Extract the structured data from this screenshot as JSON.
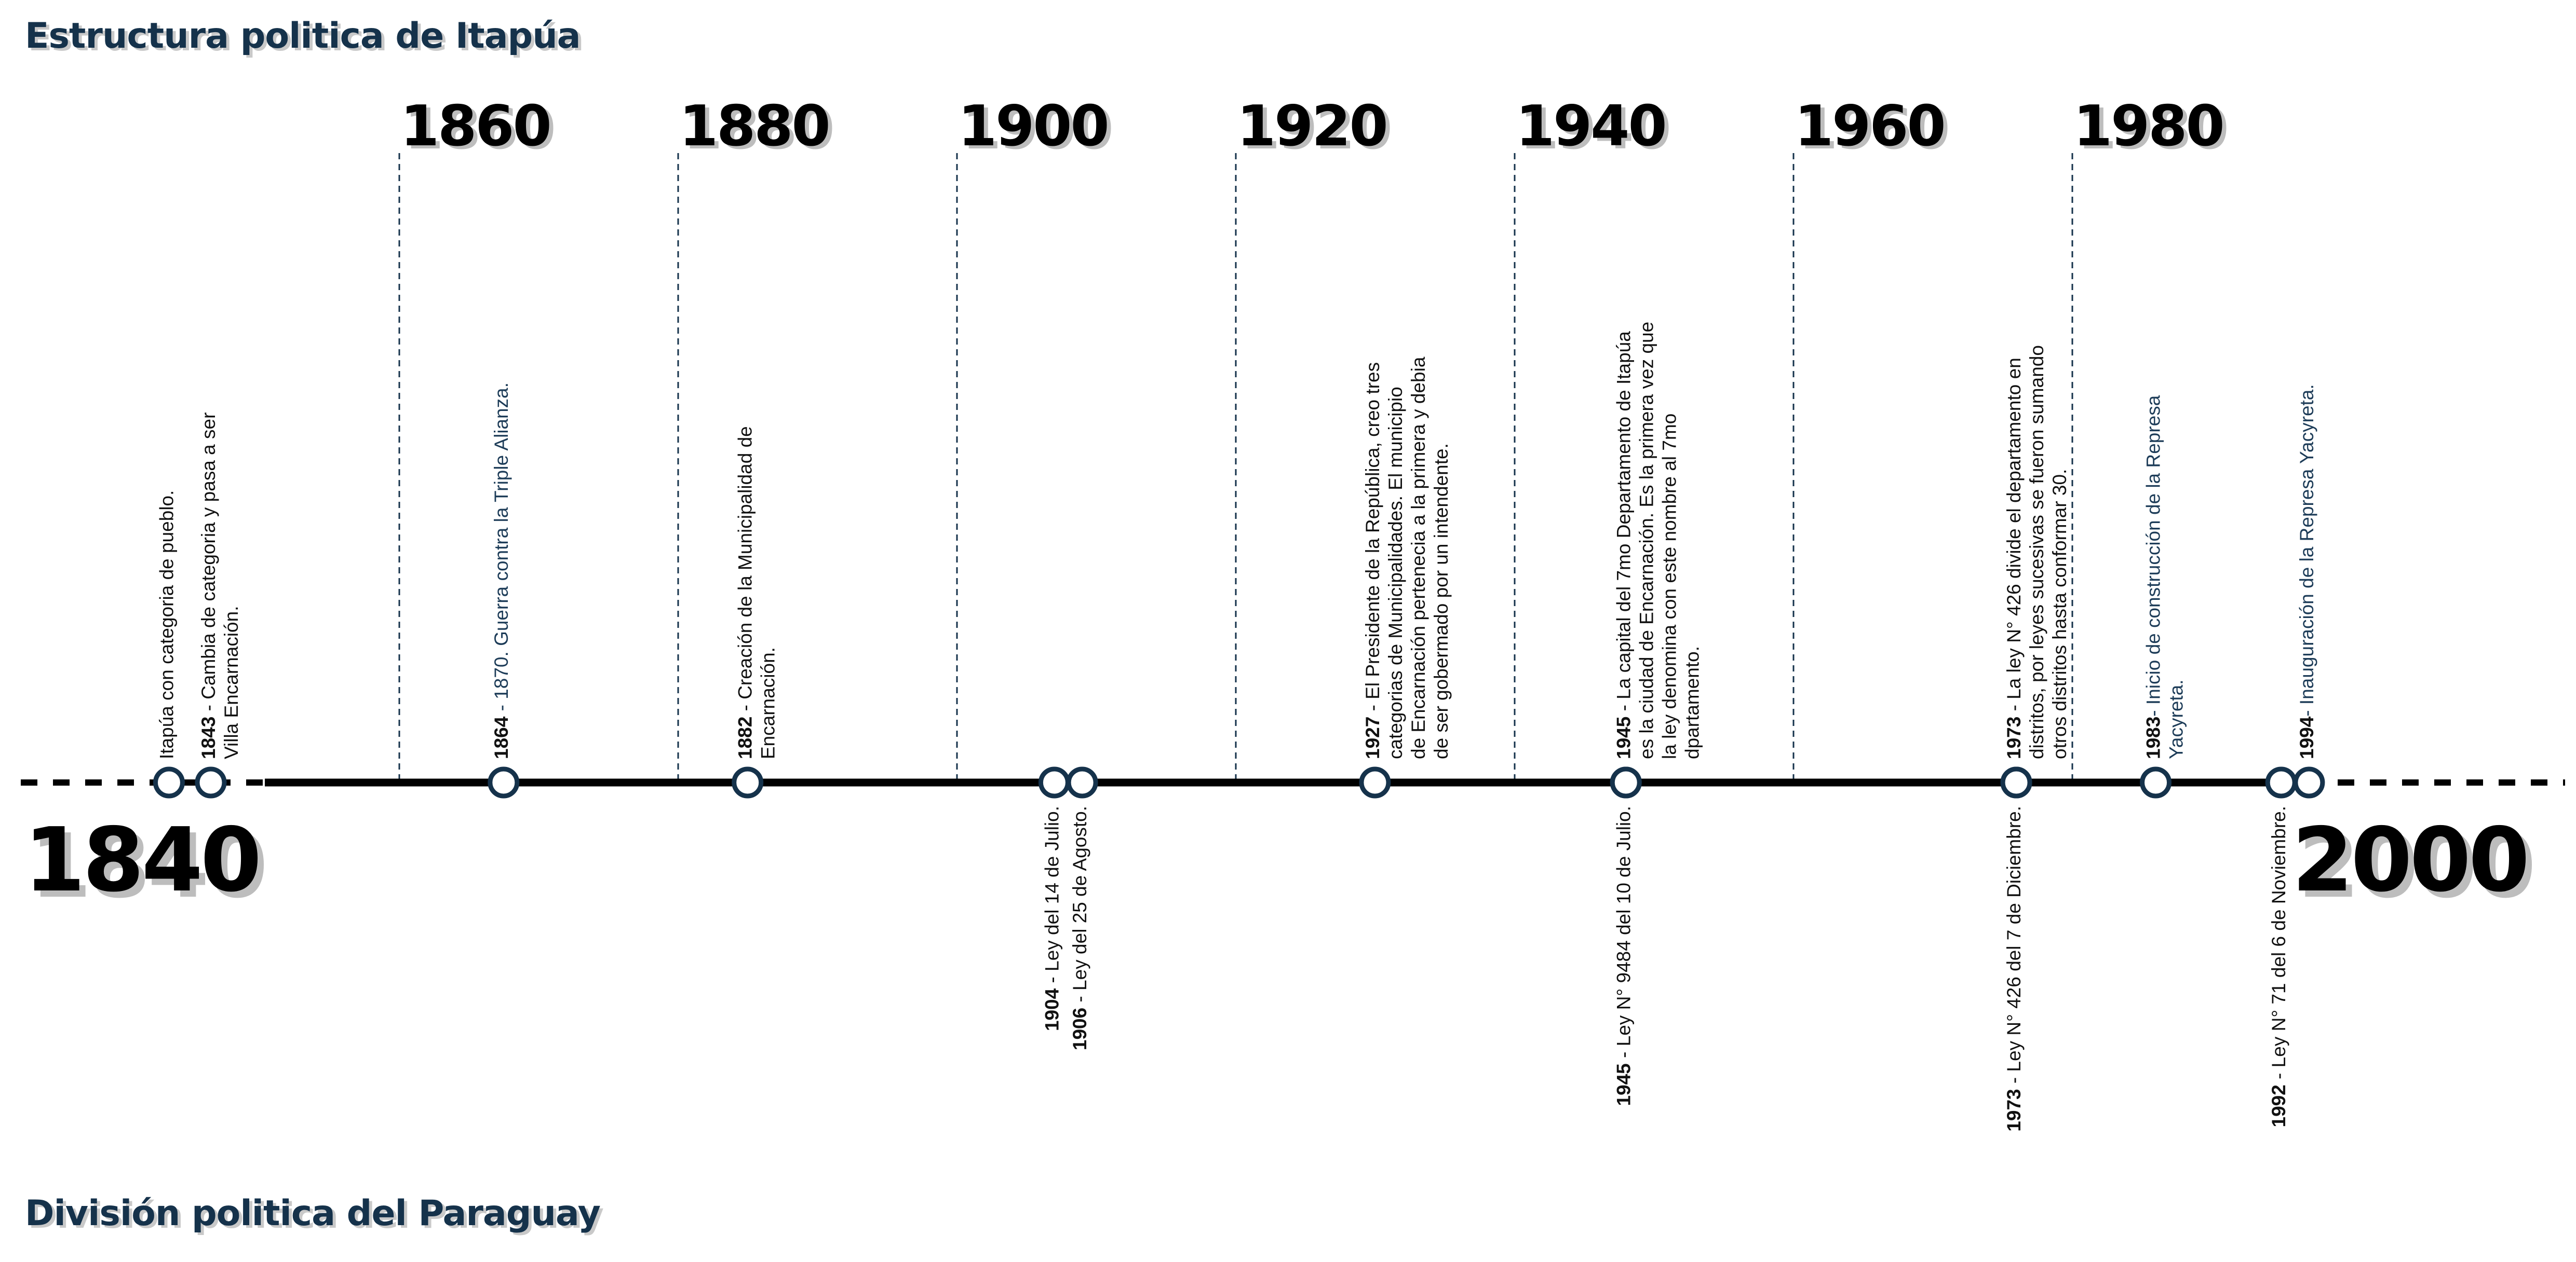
{
  "titles": {
    "top": "Estructura politica de Itapúa",
    "bottom": "División politica del Paraguay"
  },
  "axis": {
    "start_label": "1840",
    "end_label": "2000",
    "decades": [
      "1860",
      "1880",
      "1900",
      "1920",
      "1940",
      "1960",
      "1980"
    ],
    "start_year": 1840,
    "end_year": 2000
  },
  "events_above": [
    {
      "year_value": 1840.5,
      "lines": [
        {
          "yr": "",
          "text": "Itapúa con categoria de pueblo."
        }
      ],
      "color": "dark"
    },
    {
      "year_value": 1843.5,
      "lines": [
        {
          "yr": "1843",
          "text": " - Cambia de categoria y pasa a ser"
        },
        {
          "yr": "",
          "text": "Villa Encarnación."
        }
      ],
      "color": "dark"
    },
    {
      "year_value": 1864.5,
      "lines": [
        {
          "yr": "1864",
          "text": " - 1870. Guerra contra la Triple Alianza."
        }
      ],
      "color": "blue"
    },
    {
      "year_value": 1882,
      "lines": [
        {
          "yr": "1882",
          "text": " - Creación de la Municipalidad de"
        },
        {
          "yr": "",
          "text": "Encarnación."
        }
      ],
      "color": "dark"
    },
    {
      "year_value": 1927,
      "lines": [
        {
          "yr": "1927",
          "text": " - El Presidente de la República, creo tres"
        },
        {
          "yr": "",
          "text": "categorias de Municipalidades. El municipio"
        },
        {
          "yr": "",
          "text": "de Encarnación pertenecia a la primera y debia"
        },
        {
          "yr": "",
          "text": "de ser gobermado por un intendente."
        }
      ],
      "color": "dark"
    },
    {
      "year_value": 1945,
      "lines": [
        {
          "yr": "1945",
          "text": " - La capital del 7mo Departamento de Itapúa"
        },
        {
          "yr": "",
          "text": "es la ciudad de Encarnación. Es la primera vez que"
        },
        {
          "yr": "",
          "text": "la ley denomina con este nombre al 7mo"
        },
        {
          "yr": "",
          "text": "dpartamento."
        }
      ],
      "color": "dark"
    },
    {
      "year_value": 1973,
      "lines": [
        {
          "yr": "1973",
          "text": " - La ley N° 426 divide el departamento en"
        },
        {
          "yr": "",
          "text": "distritos, por leyes sucesivas se fueron sumando"
        },
        {
          "yr": "",
          "text": "otros distritos hasta conformar 30."
        }
      ],
      "color": "dark"
    },
    {
      "year_value": 1983,
      "lines": [
        {
          "yr": "1983",
          "text": "- Inicio de construcción de la Represa"
        },
        {
          "yr": "",
          "text": "Yacyreta."
        }
      ],
      "color": "blue"
    },
    {
      "year_value": 1994,
      "lines": [
        {
          "yr": "1994",
          "text": "- Inauguración de la Represa Yacyreta."
        }
      ],
      "color": "blue"
    }
  ],
  "events_below": [
    {
      "year_value": 1904,
      "lines": [
        {
          "yr": "1904",
          "text": " - Ley del 14 de Julio."
        }
      ]
    },
    {
      "year_value": 1906,
      "lines": [
        {
          "yr": "1906",
          "text": " - Ley del 25 de Agosto."
        }
      ]
    },
    {
      "year_value": 1945,
      "lines": [
        {
          "yr": "1945",
          "text": " - Ley N° 9484 del 10 de Julio."
        }
      ]
    },
    {
      "year_value": 1973,
      "lines": [
        {
          "yr": "1973",
          "text": " - Ley N° 426 del 7 de Diciembre."
        }
      ]
    },
    {
      "year_value": 1992,
      "lines": [
        {
          "yr": "1992",
          "text": " - Ley N° 71 del 6 de Noviembre."
        }
      ]
    }
  ]
}
